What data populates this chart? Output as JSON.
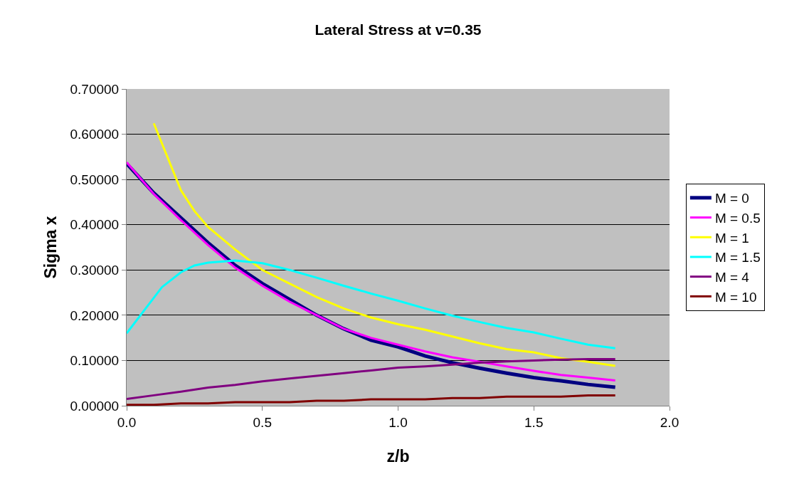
{
  "chart_data": {
    "type": "line",
    "title": "Lateral Stress at v=0.35",
    "xlabel": "z/b",
    "ylabel": "Sigma x",
    "x": [
      0,
      0.1,
      0.2,
      0.3,
      0.4,
      0.5,
      0.6,
      0.7,
      0.8,
      0.9,
      1.0,
      1.1,
      1.2,
      1.3,
      1.4,
      1.5,
      1.6,
      1.7,
      1.8
    ],
    "series": [
      {
        "name": "M = 0",
        "color": "#000080",
        "values": [
          0.535,
          0.47,
          0.415,
          0.36,
          0.31,
          0.27,
          0.235,
          0.2,
          0.17,
          0.145,
          0.13,
          0.11,
          0.095,
          0.083,
          0.072,
          0.062,
          0.055,
          0.047,
          0.041
        ]
      },
      {
        "name": "M = 0.5",
        "color": "#ff00ff",
        "values": [
          0.538,
          0.468,
          0.41,
          0.355,
          0.305,
          0.265,
          0.23,
          0.2,
          0.17,
          0.15,
          0.135,
          0.12,
          0.107,
          0.097,
          0.087,
          0.077,
          0.068,
          0.062,
          0.056
        ]
      },
      {
        "name": "M = 1",
        "color": "#ffff00",
        "x": [
          0.1,
          0.2,
          0.25,
          0.3,
          0.4,
          0.5,
          0.6,
          0.7,
          0.8,
          0.9,
          1.0,
          1.1,
          1.2,
          1.3,
          1.4,
          1.5,
          1.6,
          1.7,
          1.8
        ],
        "values": [
          0.624,
          0.476,
          0.43,
          0.395,
          0.345,
          0.3,
          0.27,
          0.24,
          0.215,
          0.195,
          0.18,
          0.168,
          0.153,
          0.138,
          0.125,
          0.118,
          0.105,
          0.097,
          0.088
        ]
      },
      {
        "name": "M = 1.5",
        "color": "#00ffff",
        "x": [
          0,
          0.13,
          0.2,
          0.25,
          0.3,
          0.4,
          0.5,
          0.6,
          0.7,
          0.8,
          0.9,
          1.0,
          1.1,
          1.2,
          1.3,
          1.4,
          1.5,
          1.6,
          1.7,
          1.8
        ],
        "values": [
          0.16,
          0.262,
          0.295,
          0.31,
          0.316,
          0.321,
          0.315,
          0.3,
          0.283,
          0.265,
          0.248,
          0.232,
          0.215,
          0.199,
          0.185,
          0.172,
          0.162,
          0.148,
          0.135,
          0.127
        ]
      },
      {
        "name": "M = 4",
        "color": "#800080",
        "values": [
          0.015,
          0.023,
          0.031,
          0.04,
          0.046,
          0.054,
          0.06,
          0.066,
          0.072,
          0.078,
          0.084,
          0.087,
          0.091,
          0.095,
          0.098,
          0.1,
          0.102,
          0.103,
          0.103
        ]
      },
      {
        "name": "M = 10",
        "color": "#800000",
        "values": [
          0.002,
          0.002,
          0.005,
          0.005,
          0.008,
          0.008,
          0.008,
          0.011,
          0.011,
          0.014,
          0.014,
          0.014,
          0.017,
          0.017,
          0.02,
          0.02,
          0.02,
          0.023,
          0.023
        ]
      }
    ],
    "xlim": [
      0,
      2
    ],
    "xticks": [
      {
        "value": 0,
        "label": "0.0"
      },
      0.5,
      {
        "value": 1,
        "label": "1.0"
      },
      1.5,
      {
        "value": 2,
        "label": "2.0"
      }
    ],
    "ylim": [
      0,
      0.7
    ],
    "yticks": [
      {
        "value": 0,
        "label": "0.00000"
      },
      {
        "value": 0.1,
        "label": "0.10000"
      },
      {
        "value": 0.2,
        "label": "0.20000"
      },
      {
        "value": 0.3,
        "label": "0.30000"
      },
      {
        "value": 0.4,
        "label": "0.40000"
      },
      {
        "value": 0.5,
        "label": "0.50000"
      },
      {
        "value": 0.6,
        "label": "0.60000"
      },
      {
        "value": 0.7,
        "label": "0.70000"
      }
    ],
    "grid": "y",
    "legend": "right",
    "marker": "none",
    "line_style": "solid"
  }
}
